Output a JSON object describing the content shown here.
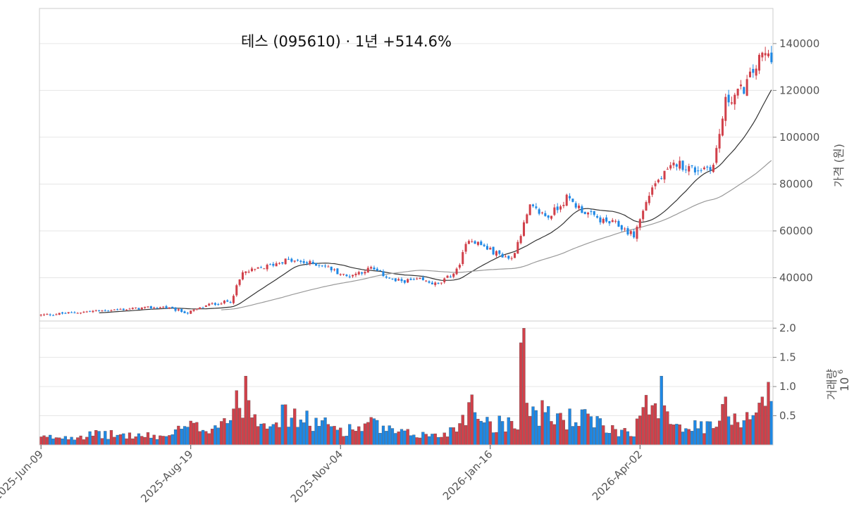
{
  "chart_data": {
    "type": "candlestick",
    "title": "테스 (095610)  ·  1년 +514.6%",
    "price_panel": {
      "ylabel": "가격 (원)",
      "ylim": [
        21500,
        155000
      ],
      "yticks": [
        40000,
        60000,
        80000,
        100000,
        120000,
        140000
      ],
      "grid": true
    },
    "volume_panel": {
      "ylabel": "거래량",
      "scale_label": "10",
      "scale_exp": "6",
      "ylim": [
        0,
        2.0
      ],
      "yticks": [
        0.5,
        1.0,
        1.5,
        2.0
      ],
      "grid": true
    },
    "x_ticks": [
      {
        "label": "2025-Jun-09",
        "index": 0
      },
      {
        "label": "2025-Aug-19",
        "index": 49
      },
      {
        "label": "2025-Nov-04",
        "index": 98
      },
      {
        "label": "2026-Jan-16",
        "index": 147
      },
      {
        "label": "2026-Apr-02",
        "index": 196
      }
    ],
    "colors": {
      "up": "#d1404a",
      "down": "#1e88e5",
      "ma_short": "#333333",
      "ma_long": "#999999",
      "grid": "#e6e6e6",
      "frame": "#cccccc"
    },
    "series": {
      "anchor_index": [
        0,
        20,
        40,
        48,
        55,
        62,
        66,
        72,
        80,
        92,
        100,
        108,
        116,
        124,
        130,
        136,
        140,
        148,
        154,
        160,
        166,
        172,
        178,
        184,
        188,
        194,
        200,
        208,
        214,
        220,
        224,
        230,
        236
      ],
      "anchor_close": [
        24000,
        26000,
        27500,
        25000,
        28500,
        30000,
        42000,
        44000,
        47500,
        45500,
        40500,
        44000,
        38500,
        39000,
        37000,
        43000,
        57000,
        51000,
        48000,
        70000,
        66000,
        74000,
        68000,
        64000,
        63000,
        58000,
        79000,
        89000,
        86000,
        88000,
        115000,
        121000,
        135000
      ],
      "volume_base": [
        0.12,
        0.18,
        0.14,
        0.3,
        0.3,
        0.5,
        0.8,
        0.45,
        0.5,
        0.35,
        0.25,
        0.35,
        0.2,
        0.18,
        0.15,
        0.3,
        0.7,
        0.35,
        0.4,
        0.6,
        0.5,
        0.45,
        0.45,
        0.3,
        0.25,
        0.25,
        0.8,
        0.4,
        0.3,
        0.3,
        0.6,
        0.45,
        0.8
      ]
    },
    "n_bars": 240
  }
}
